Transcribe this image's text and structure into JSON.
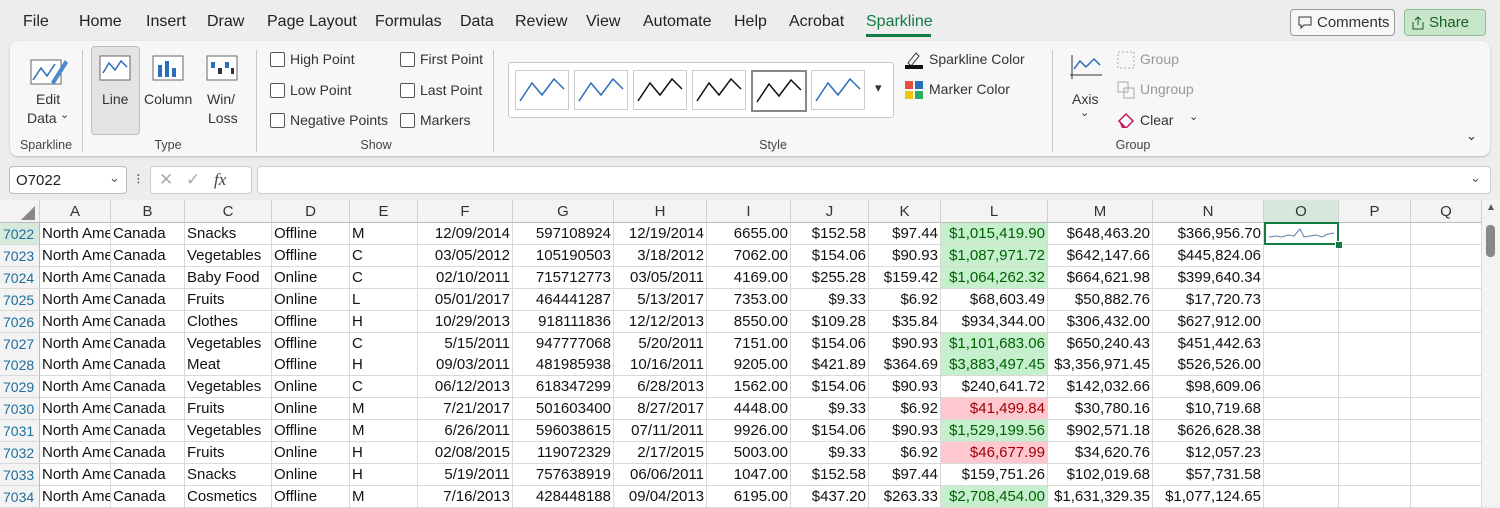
{
  "menu": {
    "tabs": [
      "File",
      "Home",
      "Insert",
      "Draw",
      "Page Layout",
      "Formulas",
      "Data",
      "Review",
      "View",
      "Automate",
      "Help",
      "Acrobat",
      "Sparkline"
    ],
    "active_tab": 12,
    "comments": "Comments",
    "share": "Share"
  },
  "ribbon": {
    "sparkline_group": {
      "edit_data": [
        "Edit",
        "Data"
      ],
      "label": "Sparkline"
    },
    "type_group": {
      "line": "Line",
      "column": "Column",
      "win_loss": [
        "Win/",
        "Loss"
      ],
      "label": "Type"
    },
    "show_group": {
      "options": [
        "High Point",
        "Low Point",
        "Negative Points",
        "First Point",
        "Last Point",
        "Markers"
      ],
      "label": "Show"
    },
    "style_group": {
      "label": "Style",
      "sparkline_color": "Sparkline Color",
      "marker_color": "Marker Color"
    },
    "group_group": {
      "axis": "Axis",
      "group": "Group",
      "ungroup": "Ungroup",
      "clear": "Clear",
      "label": "Group"
    }
  },
  "formula_bar": {
    "name_box": "O7022"
  },
  "sheet": {
    "columns": [
      "A",
      "B",
      "C",
      "D",
      "E",
      "F",
      "G",
      "H",
      "I",
      "J",
      "K",
      "L",
      "M",
      "N",
      "O",
      "P",
      "Q"
    ],
    "rows": [
      {
        "number": "7022",
        "cells": [
          "North Ame",
          "Canada",
          "Snacks",
          "Offline",
          "M",
          "12/09/2014",
          "597108924",
          "12/19/2014",
          "6655.00",
          "$152.58",
          "$97.44",
          "$1,015,419.90",
          "$648,463.20",
          "$366,956.70"
        ],
        "fill": "green"
      },
      {
        "number": "7023",
        "cells": [
          "North Ame",
          "Canada",
          "Vegetables",
          "Offline",
          "C",
          "03/05/2012",
          "105190503",
          "3/18/2012",
          "7062.00",
          "$154.06",
          "$90.93",
          "$1,087,971.72",
          "$642,147.66",
          "$445,824.06"
        ],
        "fill": "green"
      },
      {
        "number": "7024",
        "cells": [
          "North Ame",
          "Canada",
          "Baby Food",
          "Online",
          "C",
          "02/10/2011",
          "715712773",
          "03/05/2011",
          "4169.00",
          "$255.28",
          "$159.42",
          "$1,064,262.32",
          "$664,621.98",
          "$399,640.34"
        ],
        "fill": "green"
      },
      {
        "number": "7025",
        "cells": [
          "North Ame",
          "Canada",
          "Fruits",
          "Online",
          "L",
          "05/01/2017",
          "464441287",
          "5/13/2017",
          "7353.00",
          "$9.33",
          "$6.92",
          "$68,603.49",
          "$50,882.76",
          "$17,720.73"
        ]
      },
      {
        "number": "7026",
        "cells": [
          "North Ame",
          "Canada",
          "Clothes",
          "Offline",
          "H",
          "10/29/2013",
          "918111836",
          "12/12/2013",
          "8550.00",
          "$109.28",
          "$35.84",
          "$934,344.00",
          "$306,432.00",
          "$627,912.00"
        ]
      },
      {
        "number": "7027",
        "cells": [
          "North Ame",
          "Canada",
          "Vegetables",
          "Offline",
          "C",
          "5/15/2011",
          "947777068",
          "5/20/2011",
          "7151.00",
          "$154.06",
          "$90.93",
          "$1,101,683.06",
          "$650,240.43",
          "$451,442.63"
        ],
        "fill": "green"
      },
      {
        "number": "7028",
        "cells": [
          "North Ame",
          "Canada",
          "Meat",
          "Offline",
          "H",
          "09/03/2011",
          "481985938",
          "10/16/2011",
          "9205.00",
          "$421.89",
          "$364.69",
          "$3,883,497.45",
          "$3,356,971.45",
          "$526,526.00"
        ],
        "fill": "green"
      },
      {
        "number": "7029",
        "cells": [
          "North Ame",
          "Canada",
          "Vegetables",
          "Online",
          "C",
          "06/12/2013",
          "618347299",
          "6/28/2013",
          "1562.00",
          "$154.06",
          "$90.93",
          "$240,641.72",
          "$142,032.66",
          "$98,609.06"
        ]
      },
      {
        "number": "7030",
        "cells": [
          "North Ame",
          "Canada",
          "Fruits",
          "Online",
          "M",
          "7/21/2017",
          "501603400",
          "8/27/2017",
          "4448.00",
          "$9.33",
          "$6.92",
          "$41,499.84",
          "$30,780.16",
          "$10,719.68"
        ],
        "fill": "red"
      },
      {
        "number": "7031",
        "cells": [
          "North Ame",
          "Canada",
          "Vegetables",
          "Offline",
          "M",
          "6/26/2011",
          "596038615",
          "07/11/2011",
          "9926.00",
          "$154.06",
          "$90.93",
          "$1,529,199.56",
          "$902,571.18",
          "$626,628.38"
        ],
        "fill": "green"
      },
      {
        "number": "7032",
        "cells": [
          "North Ame",
          "Canada",
          "Fruits",
          "Online",
          "H",
          "02/08/2015",
          "119072329",
          "2/17/2015",
          "5003.00",
          "$9.33",
          "$6.92",
          "$46,677.99",
          "$34,620.76",
          "$12,057.23"
        ],
        "fill": "red"
      },
      {
        "number": "7033",
        "cells": [
          "North Ame",
          "Canada",
          "Snacks",
          "Online",
          "H",
          "5/19/2011",
          "757638919",
          "06/06/2011",
          "1047.00",
          "$152.58",
          "$97.44",
          "$159,751.26",
          "$102,019.68",
          "$57,731.58"
        ]
      },
      {
        "number": "7034",
        "cells": [
          "North Ame",
          "Canada",
          "Cosmetics",
          "Offline",
          "M",
          "7/16/2013",
          "428448188",
          "09/04/2013",
          "6195.00",
          "$437.20",
          "$263.33",
          "$2,708,454.00",
          "$1,631,329.35",
          "$1,077,124.65"
        ],
        "fill": "green"
      }
    ]
  }
}
